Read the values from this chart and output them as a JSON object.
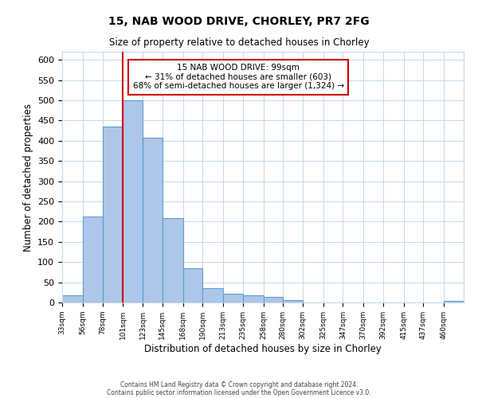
{
  "title": "15, NAB WOOD DRIVE, CHORLEY, PR7 2FG",
  "subtitle": "Size of property relative to detached houses in Chorley",
  "xlabel": "Distribution of detached houses by size in Chorley",
  "ylabel": "Number of detached properties",
  "bin_edges": [
    33,
    56,
    78,
    101,
    123,
    145,
    168,
    190,
    213,
    235,
    258,
    280,
    302,
    325,
    347,
    370,
    392,
    415,
    437,
    460,
    482
  ],
  "bin_counts": [
    18,
    212,
    435,
    500,
    408,
    209,
    85,
    35,
    22,
    18,
    13,
    5,
    0,
    0,
    0,
    0,
    0,
    0,
    0,
    3
  ],
  "bar_color": "#aec6e8",
  "bar_edgecolor": "#5a9fd4",
  "property_line_x": 101,
  "property_line_color": "#cc0000",
  "annotation_text": "15 NAB WOOD DRIVE: 99sqm\n← 31% of detached houses are smaller (603)\n68% of semi-detached houses are larger (1,324) →",
  "annotation_box_edgecolor": "#cc0000",
  "ylim": [
    0,
    620
  ],
  "yticks": [
    0,
    50,
    100,
    150,
    200,
    250,
    300,
    350,
    400,
    450,
    500,
    550,
    600
  ],
  "footer1": "Contains HM Land Registry data © Crown copyright and database right 2024.",
  "footer2": "Contains public sector information licensed under the Open Government Licence v3.0.",
  "background_color": "#ffffff",
  "grid_color": "#c8d8e8",
  "figwidth": 6.0,
  "figheight": 5.0,
  "dpi": 100
}
